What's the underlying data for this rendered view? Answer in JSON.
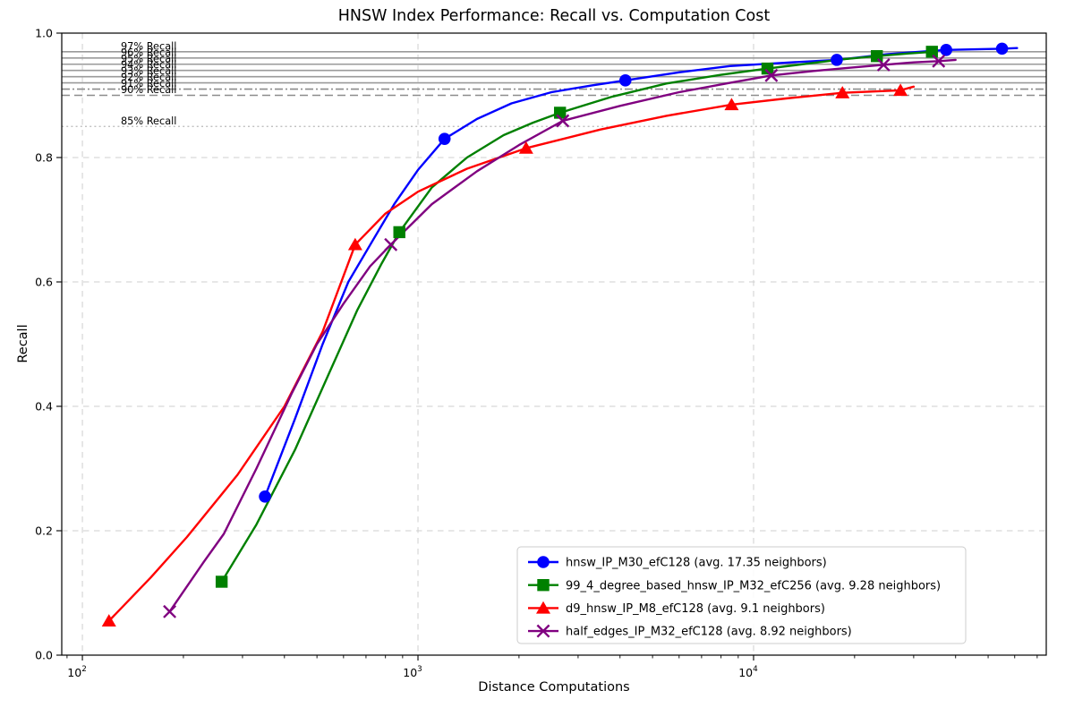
{
  "title": "HNSW Index Performance: Recall vs. Computation Cost",
  "xlabel": "Distance Computations",
  "ylabel": "Recall",
  "chart_data": {
    "type": "line",
    "x_scale": "log",
    "x_range": [
      86.8,
      74500
    ],
    "y_range": [
      0.0,
      1.0
    ],
    "grid": {
      "show": true,
      "color": "#cfcfcf",
      "style": "dashed"
    },
    "x_major_ticks": [
      {
        "value": 100,
        "mantissa": "10",
        "exp": "2"
      },
      {
        "value": 1000,
        "mantissa": "10",
        "exp": "3"
      },
      {
        "value": 10000,
        "mantissa": "10",
        "exp": "4"
      }
    ],
    "x_minor_ticks": [
      90,
      200,
      300,
      400,
      500,
      600,
      700,
      800,
      900,
      2000,
      3000,
      4000,
      5000,
      6000,
      7000,
      8000,
      9000,
      20000,
      30000,
      40000,
      50000,
      60000,
      70000
    ],
    "y_ticks": [
      {
        "value": 0.0,
        "label": "0.0"
      },
      {
        "value": 0.2,
        "label": "0.2"
      },
      {
        "value": 0.4,
        "label": "0.4"
      },
      {
        "value": 0.6,
        "label": "0.6"
      },
      {
        "value": 0.8,
        "label": "0.8"
      },
      {
        "value": 1.0,
        "label": "1.0"
      }
    ],
    "reference_lines": [
      {
        "value": 0.97,
        "style": "solid",
        "color": "#9a9a9a",
        "label": "97% Recall"
      },
      {
        "value": 0.96,
        "style": "solid",
        "color": "#9a9a9a",
        "label": "96% Recall"
      },
      {
        "value": 0.95,
        "style": "solid",
        "color": "#9a9a9a",
        "label": "95% Recall"
      },
      {
        "value": 0.94,
        "style": "solid",
        "color": "#9a9a9a",
        "label": "94% Recall"
      },
      {
        "value": 0.93,
        "style": "solid",
        "color": "#9a9a9a",
        "label": "93% Recall"
      },
      {
        "value": 0.92,
        "style": "solid",
        "color": "#9a9a9a",
        "label": "92% Recall"
      },
      {
        "value": 0.91,
        "style": "dashdot",
        "color": "#8c8c8c",
        "label": "91% Recall"
      },
      {
        "value": 0.9,
        "style": "dashed",
        "color": "#8c8c8c",
        "label": "90% Recall"
      },
      {
        "value": 0.85,
        "style": "dotted",
        "color": "#b8b8b8",
        "label": "85% Recall"
      }
    ],
    "legend_position": "lower right",
    "series": [
      {
        "name": "hnsw_IP_M30_efC128",
        "legend_label": "hnsw_IP_M30_efC128 (avg. 17.35 neighbors)",
        "color": "#0000ff",
        "marker": "circle",
        "points": [
          [
            350,
            0.255
          ],
          [
            1200,
            0.83
          ],
          [
            4150,
            0.924
          ],
          [
            17700,
            0.957
          ],
          [
            37500,
            0.973
          ],
          [
            55000,
            0.975
          ]
        ],
        "line": [
          [
            350,
            0.255
          ],
          [
            430,
            0.38
          ],
          [
            520,
            0.5
          ],
          [
            620,
            0.6
          ],
          [
            730,
            0.665
          ],
          [
            850,
            0.725
          ],
          [
            1000,
            0.78
          ],
          [
            1200,
            0.83
          ],
          [
            1500,
            0.862
          ],
          [
            1900,
            0.887
          ],
          [
            2500,
            0.905
          ],
          [
            3300,
            0.916
          ],
          [
            4150,
            0.924
          ],
          [
            6000,
            0.937
          ],
          [
            8500,
            0.947
          ],
          [
            12000,
            0.952
          ],
          [
            17700,
            0.957
          ],
          [
            25000,
            0.966
          ],
          [
            31000,
            0.97
          ],
          [
            37500,
            0.973
          ],
          [
            46000,
            0.974
          ],
          [
            55000,
            0.975
          ],
          [
            61000,
            0.976
          ]
        ]
      },
      {
        "name": "99_4_degree_based_hnsw_IP_M32_efC256",
        "legend_label": "99_4_degree_based_hnsw_IP_M32_efC256 (avg. 9.28 neighbors)",
        "color": "#008000",
        "marker": "square",
        "points": [
          [
            260,
            0.118
          ],
          [
            880,
            0.68
          ],
          [
            2650,
            0.872
          ],
          [
            11000,
            0.943
          ],
          [
            23300,
            0.963
          ],
          [
            34000,
            0.97
          ]
        ],
        "line": [
          [
            260,
            0.118
          ],
          [
            330,
            0.21
          ],
          [
            430,
            0.33
          ],
          [
            540,
            0.45
          ],
          [
            660,
            0.555
          ],
          [
            780,
            0.63
          ],
          [
            880,
            0.68
          ],
          [
            1100,
            0.752
          ],
          [
            1400,
            0.8
          ],
          [
            1800,
            0.836
          ],
          [
            2200,
            0.856
          ],
          [
            2650,
            0.872
          ],
          [
            3800,
            0.898
          ],
          [
            5500,
            0.919
          ],
          [
            8000,
            0.933
          ],
          [
            11000,
            0.943
          ],
          [
            14500,
            0.951
          ],
          [
            18500,
            0.958
          ],
          [
            23300,
            0.963
          ],
          [
            28500,
            0.967
          ],
          [
            34000,
            0.97
          ]
        ]
      },
      {
        "name": "d9_hnsw_IP_M8_efC128",
        "legend_label": "d9_hnsw_IP_M8_efC128 (avg. 9.1 neighbors)",
        "color": "#ff0000",
        "marker": "triangle",
        "points": [
          [
            120,
            0.055
          ],
          [
            650,
            0.66
          ],
          [
            2100,
            0.815
          ],
          [
            8600,
            0.885
          ],
          [
            18400,
            0.904
          ],
          [
            27400,
            0.908
          ]
        ],
        "line": [
          [
            120,
            0.055
          ],
          [
            160,
            0.125
          ],
          [
            205,
            0.19
          ],
          [
            290,
            0.29
          ],
          [
            400,
            0.4
          ],
          [
            520,
            0.52
          ],
          [
            650,
            0.66
          ],
          [
            800,
            0.71
          ],
          [
            1000,
            0.745
          ],
          [
            1400,
            0.782
          ],
          [
            2100,
            0.815
          ],
          [
            3500,
            0.845
          ],
          [
            5500,
            0.867
          ],
          [
            8600,
            0.885
          ],
          [
            12500,
            0.895
          ],
          [
            18400,
            0.904
          ],
          [
            27400,
            0.908
          ],
          [
            30000,
            0.914
          ]
        ]
      },
      {
        "name": "half_edges_IP_M32_efC128",
        "legend_label": "half_edges_IP_M32_efC128 (avg. 8.92 neighbors)",
        "color": "#800080",
        "marker": "x",
        "points": [
          [
            182,
            0.07
          ],
          [
            830,
            0.66
          ],
          [
            2700,
            0.859
          ],
          [
            11300,
            0.932
          ],
          [
            24400,
            0.949
          ],
          [
            35600,
            0.955
          ]
        ],
        "line": [
          [
            182,
            0.07
          ],
          [
            230,
            0.15
          ],
          [
            264,
            0.195
          ],
          [
            330,
            0.3
          ],
          [
            420,
            0.42
          ],
          [
            500,
            0.5
          ],
          [
            600,
            0.565
          ],
          [
            720,
            0.625
          ],
          [
            830,
            0.66
          ],
          [
            1100,
            0.725
          ],
          [
            1500,
            0.778
          ],
          [
            2000,
            0.82
          ],
          [
            2700,
            0.859
          ],
          [
            4000,
            0.883
          ],
          [
            6000,
            0.905
          ],
          [
            8500,
            0.92
          ],
          [
            11300,
            0.932
          ],
          [
            15000,
            0.939
          ],
          [
            19000,
            0.944
          ],
          [
            24400,
            0.949
          ],
          [
            30000,
            0.953
          ],
          [
            35600,
            0.955
          ],
          [
            40000,
            0.957
          ]
        ]
      }
    ]
  }
}
